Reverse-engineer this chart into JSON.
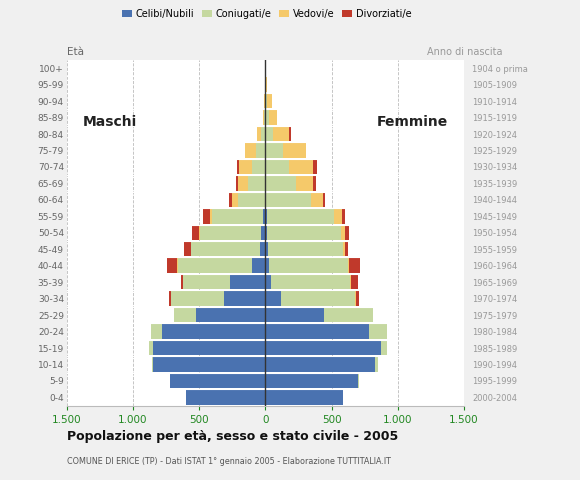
{
  "age_groups": [
    "0-4",
    "5-9",
    "10-14",
    "15-19",
    "20-24",
    "25-29",
    "30-34",
    "35-39",
    "40-44",
    "45-49",
    "50-54",
    "55-59",
    "60-64",
    "65-69",
    "70-74",
    "75-79",
    "80-84",
    "85-89",
    "90-94",
    "95-99",
    "100+"
  ],
  "birth_years": [
    "2000-2004",
    "1995-1999",
    "1990-1994",
    "1985-1989",
    "1980-1984",
    "1975-1979",
    "1970-1974",
    "1965-1969",
    "1960-1964",
    "1955-1959",
    "1950-1954",
    "1945-1949",
    "1940-1944",
    "1935-1939",
    "1930-1934",
    "1925-1929",
    "1920-1924",
    "1915-1919",
    "1910-1914",
    "1905-1909",
    "1904 o prima"
  ],
  "males": {
    "celibi": [
      600,
      720,
      850,
      850,
      780,
      520,
      310,
      270,
      100,
      40,
      30,
      20,
      5,
      0,
      0,
      0,
      0,
      0,
      0,
      0,
      0
    ],
    "coniugati": [
      0,
      0,
      5,
      30,
      80,
      170,
      400,
      350,
      560,
      520,
      460,
      380,
      200,
      130,
      100,
      70,
      30,
      10,
      5,
      0,
      0
    ],
    "vedovi": [
      0,
      0,
      0,
      0,
      0,
      0,
      5,
      0,
      5,
      5,
      10,
      20,
      50,
      80,
      100,
      80,
      30,
      10,
      5,
      0,
      0
    ],
    "divorziati": [
      0,
      0,
      0,
      0,
      0,
      0,
      10,
      15,
      80,
      50,
      55,
      50,
      20,
      15,
      15,
      0,
      0,
      0,
      0,
      0,
      0
    ]
  },
  "females": {
    "nubili": [
      590,
      700,
      830,
      870,
      780,
      440,
      120,
      40,
      25,
      20,
      15,
      10,
      5,
      0,
      0,
      0,
      0,
      0,
      0,
      0,
      0
    ],
    "coniugate": [
      0,
      5,
      20,
      50,
      140,
      370,
      560,
      600,
      600,
      570,
      560,
      510,
      340,
      230,
      180,
      130,
      60,
      30,
      10,
      5,
      0
    ],
    "vedove": [
      0,
      0,
      0,
      0,
      0,
      0,
      5,
      5,
      10,
      15,
      30,
      60,
      90,
      130,
      180,
      180,
      120,
      60,
      40,
      5,
      5
    ],
    "divorziate": [
      0,
      0,
      0,
      0,
      0,
      5,
      20,
      55,
      80,
      20,
      30,
      20,
      15,
      20,
      30,
      0,
      10,
      0,
      0,
      0,
      0
    ]
  },
  "colors": {
    "celibi": "#4a72b0",
    "coniugati": "#c5d8a0",
    "vedovi": "#f5c96a",
    "divorziati": "#c0392b"
  },
  "title": "Popolazione per età, sesso e stato civile - 2005",
  "subtitle": "COMUNE DI ERICE (TP) - Dati ISTAT 1° gennaio 2005 - Elaborazione TUTTITALIA.IT",
  "legend_labels": [
    "Celibi/Nubili",
    "Coniugati/e",
    "Vedovi/e",
    "Divorziati/e"
  ],
  "bg_color": "#f0f0f0",
  "plot_bg": "#ffffff",
  "xlim": 1500
}
